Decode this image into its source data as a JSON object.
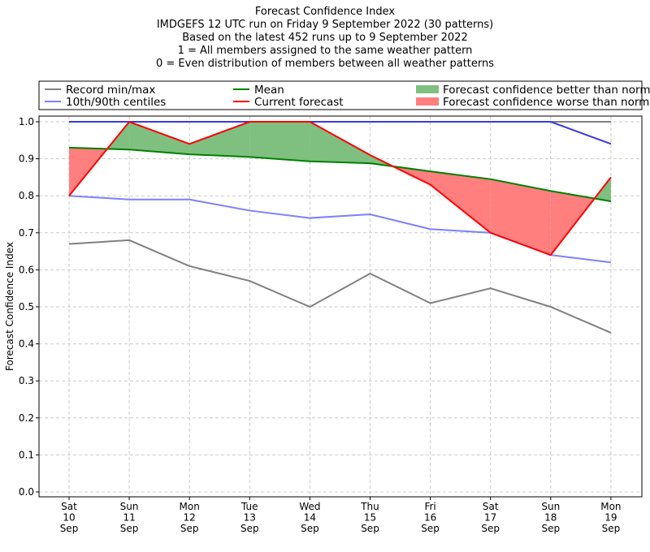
{
  "chart_data": {
    "type": "line",
    "title_lines": [
      "Forecast Confidence Index",
      "IMDGEFS 12 UTC run on Friday 9 September 2022 (30 patterns)",
      "Based on the latest 452 runs up to 9 September 2022",
      "1 = All members assigned to the same weather pattern",
      "0 = Even distribution of members between all weather patterns"
    ],
    "ylabel": "Forecast Confidence Index",
    "ylim": [
      0,
      1
    ],
    "yticks": [
      "0.0",
      "0.1",
      "0.2",
      "0.3",
      "0.4",
      "0.5",
      "0.6",
      "0.7",
      "0.8",
      "0.9",
      "1.0"
    ],
    "categories": [
      [
        "Sat",
        "10",
        "Sep"
      ],
      [
        "Sun",
        "11",
        "Sep"
      ],
      [
        "Mon",
        "12",
        "Sep"
      ],
      [
        "Tue",
        "13",
        "Sep"
      ],
      [
        "Wed",
        "14",
        "Sep"
      ],
      [
        "Thu",
        "15",
        "Sep"
      ],
      [
        "Fri",
        "16",
        "Sep"
      ],
      [
        "Sat",
        "17",
        "Sep"
      ],
      [
        "Sun",
        "18",
        "Sep"
      ],
      [
        "Mon",
        "19",
        "Sep"
      ]
    ],
    "grid": true,
    "legend_position": "top",
    "series": [
      {
        "name": "Record min/max",
        "color": "#808080",
        "min": [
          0.67,
          0.68,
          0.61,
          0.57,
          0.5,
          0.59,
          0.51,
          0.55,
          0.5,
          0.43
        ],
        "max": [
          1,
          1,
          1,
          1,
          1,
          1,
          1,
          1,
          1,
          1
        ]
      },
      {
        "name": "10th/90th centiles",
        "color": "#7f7fff",
        "p10": [
          0.8,
          0.79,
          0.79,
          0.76,
          0.74,
          0.75,
          0.71,
          0.7,
          0.64,
          0.62
        ],
        "p90": [
          1,
          1,
          1,
          1,
          1,
          1,
          1,
          1,
          1,
          0.94
        ]
      },
      {
        "name": "Mean",
        "color": "#008000",
        "values": [
          0.93,
          0.925,
          0.912,
          0.905,
          0.893,
          0.888,
          0.866,
          0.845,
          0.813,
          0.785
        ]
      },
      {
        "name": "Current forecast",
        "color": "#ff0000",
        "values": [
          0.8,
          1.0,
          0.94,
          1.0,
          1.0,
          0.91,
          0.83,
          0.7,
          0.64,
          0.85
        ]
      }
    ],
    "fills": [
      {
        "name": "Forecast confidence better than normal",
        "color": "#7fbf7f"
      },
      {
        "name": "Forecast confidence worse than normal",
        "color": "#ff7f7f"
      }
    ]
  }
}
